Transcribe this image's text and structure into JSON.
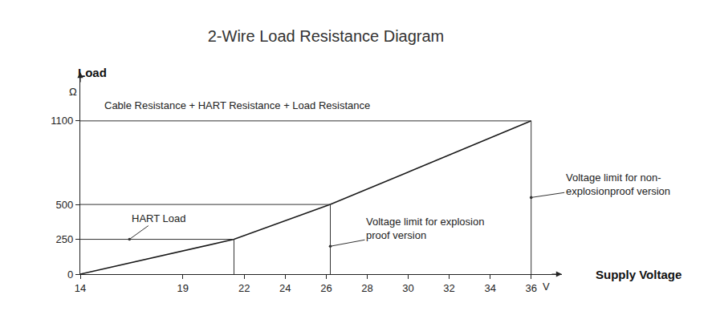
{
  "chart_data": {
    "type": "line",
    "title": "2-Wire Load Resistance Diagram",
    "subtitle": "Cable Resistance + HART Resistance + Load Resistance",
    "x_label": "Supply Voltage",
    "x_unit": "V",
    "y_label": "Load",
    "y_unit": "Ω",
    "color": "#1a1a1a",
    "x": [
      14,
      21.5,
      26.2,
      36
    ],
    "values": [
      0,
      250,
      500,
      1100
    ],
    "xlim": [
      14,
      37.5
    ],
    "xticks": [
      14,
      19,
      22,
      24,
      26,
      28,
      30,
      32,
      34,
      36
    ],
    "ylim": [
      0,
      1450
    ],
    "yticks": [
      0,
      250,
      500,
      1100
    ],
    "grid": false,
    "limits": [
      {
        "x": 21.5,
        "y": 250
      },
      {
        "x": 26.2,
        "y": 500
      },
      {
        "x": 36,
        "y": 1100
      }
    ],
    "annotations": [
      {
        "text": "HART Load",
        "x": 16.4,
        "y": 250
      },
      {
        "text": "Voltage limit for explosion\nproof version",
        "x": 26.2,
        "y": 200
      },
      {
        "text": "Voltage limit for non-\nexplosionproof version",
        "x": 36,
        "y": 550
      }
    ]
  }
}
